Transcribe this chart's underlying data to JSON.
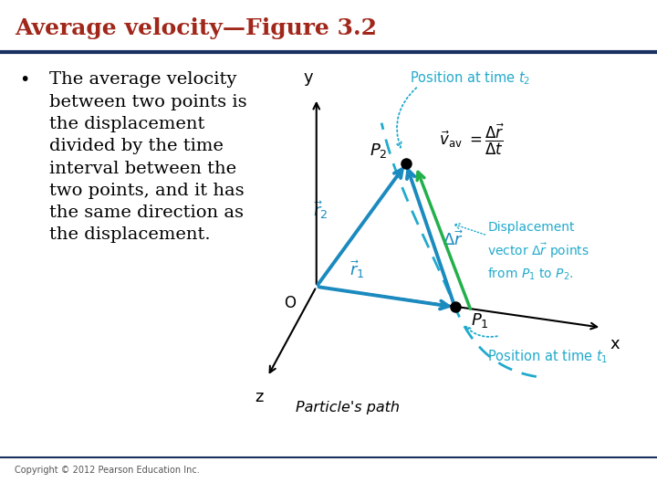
{
  "title": "Average velocity—Figure 3.2",
  "title_color": "#a0271a",
  "title_fontsize": 18,
  "bullet_text": "The average velocity\nbetween two points is\nthe displacement\ndivided by the time\ninterval between the\ntwo points, and it has\nthe same direction as\nthe displacement.",
  "bullet_fontsize": 14,
  "bg_color": "#ffffff",
  "header_line_color": "#1a3060",
  "footer_line_color": "#1a3060",
  "copyright_text": "Copyright © 2012 Pearson Education Inc.",
  "blue_color": "#1a8abf",
  "green_color": "#22b04a",
  "cyan_color": "#22aacc",
  "black": "#000000"
}
